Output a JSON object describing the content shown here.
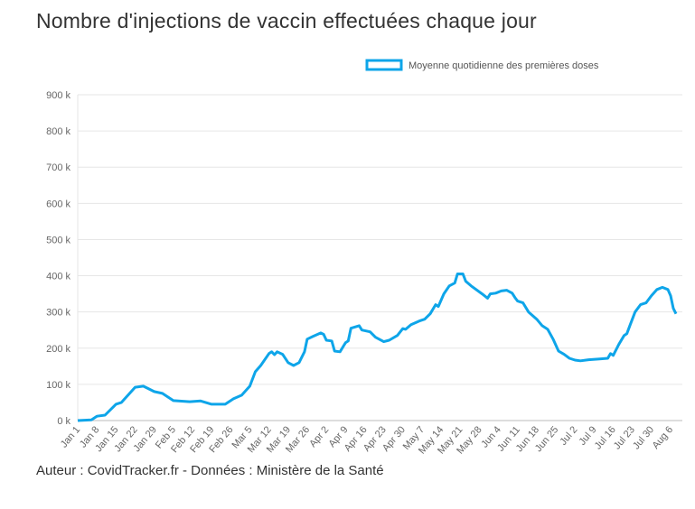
{
  "chart_data": {
    "type": "line",
    "title": "Nombre d'injections de vaccin effectuées chaque jour",
    "footer": "Auteur : CovidTracker.fr - Données : Ministère de la Santé",
    "legend": {
      "label": "Moyenne quotidienne des premières doses",
      "placement": "top-right"
    },
    "color": "#0ea5e9",
    "ylim": [
      0,
      900
    ],
    "yticks": [
      0,
      100,
      200,
      300,
      400,
      500,
      600,
      700,
      800,
      900
    ],
    "ytick_labels": [
      "0 k",
      "100 k",
      "200 k",
      "300 k",
      "400 k",
      "500 k",
      "600 k",
      "700 k",
      "800 k",
      "900 k"
    ],
    "xtick_labels": [
      "Jan 1",
      "Jan 8",
      "Jan 15",
      "Jan 22",
      "Jan 29",
      "Feb 5",
      "Feb 12",
      "Feb 19",
      "Feb 26",
      "Mar 5",
      "Mar 12",
      "Mar 19",
      "Mar 26",
      "Apr 2",
      "Apr 9",
      "Apr 16",
      "Apr 23",
      "Apr 30",
      "May 7",
      "May 14",
      "May 21",
      "May 28",
      "Jun 4",
      "Jun 11",
      "Jun 18",
      "Jun 25",
      "Jul 2",
      "Jul 9",
      "Jul 16",
      "Jul 23",
      "Jul 30",
      "Aug 6"
    ],
    "x_unit": "days since Jan 1",
    "y_unit": "thousands",
    "series": [
      {
        "name": "Moyenne quotidienne des premières doses",
        "x": [
          0,
          5,
          7,
          10,
          14,
          16,
          21,
          24,
          28,
          31,
          35,
          41,
          45,
          49,
          54,
          57,
          60,
          63,
          65,
          67,
          70,
          71,
          72,
          73,
          75,
          77,
          79,
          81,
          83,
          84,
          86,
          89,
          90,
          91,
          93,
          94,
          96,
          98,
          99,
          100,
          103,
          104,
          107,
          109,
          112,
          114,
          117,
          119,
          120,
          122,
          125,
          127,
          129,
          131,
          132,
          134,
          136,
          138,
          139,
          141,
          142,
          144,
          148,
          150,
          151,
          153,
          155,
          157,
          159,
          160,
          161,
          163,
          165,
          168,
          170,
          172,
          174,
          176,
          178,
          180,
          182,
          184,
          187,
          191,
          194,
          195,
          196,
          198,
          200,
          201,
          202,
          204,
          206,
          208,
          210,
          212,
          214,
          216,
          217,
          218,
          219
        ],
        "y": [
          0,
          2,
          12,
          15,
          45,
          50,
          92,
          95,
          80,
          75,
          55,
          52,
          54,
          45,
          45,
          60,
          70,
          95,
          135,
          152,
          185,
          190,
          182,
          190,
          183,
          160,
          152,
          160,
          190,
          225,
          232,
          242,
          238,
          222,
          220,
          192,
          190,
          215,
          220,
          255,
          262,
          250,
          245,
          230,
          218,
          222,
          235,
          254,
          252,
          265,
          275,
          280,
          295,
          320,
          315,
          350,
          372,
          380,
          405,
          405,
          385,
          372,
          350,
          338,
          350,
          352,
          358,
          360,
          352,
          340,
          330,
          325,
          300,
          280,
          262,
          252,
          225,
          192,
          183,
          172,
          167,
          165,
          168,
          170,
          172,
          185,
          180,
          210,
          235,
          240,
          260,
          300,
          320,
          325,
          345,
          362,
          368,
          362,
          345,
          310,
          295
        ]
      }
    ]
  }
}
